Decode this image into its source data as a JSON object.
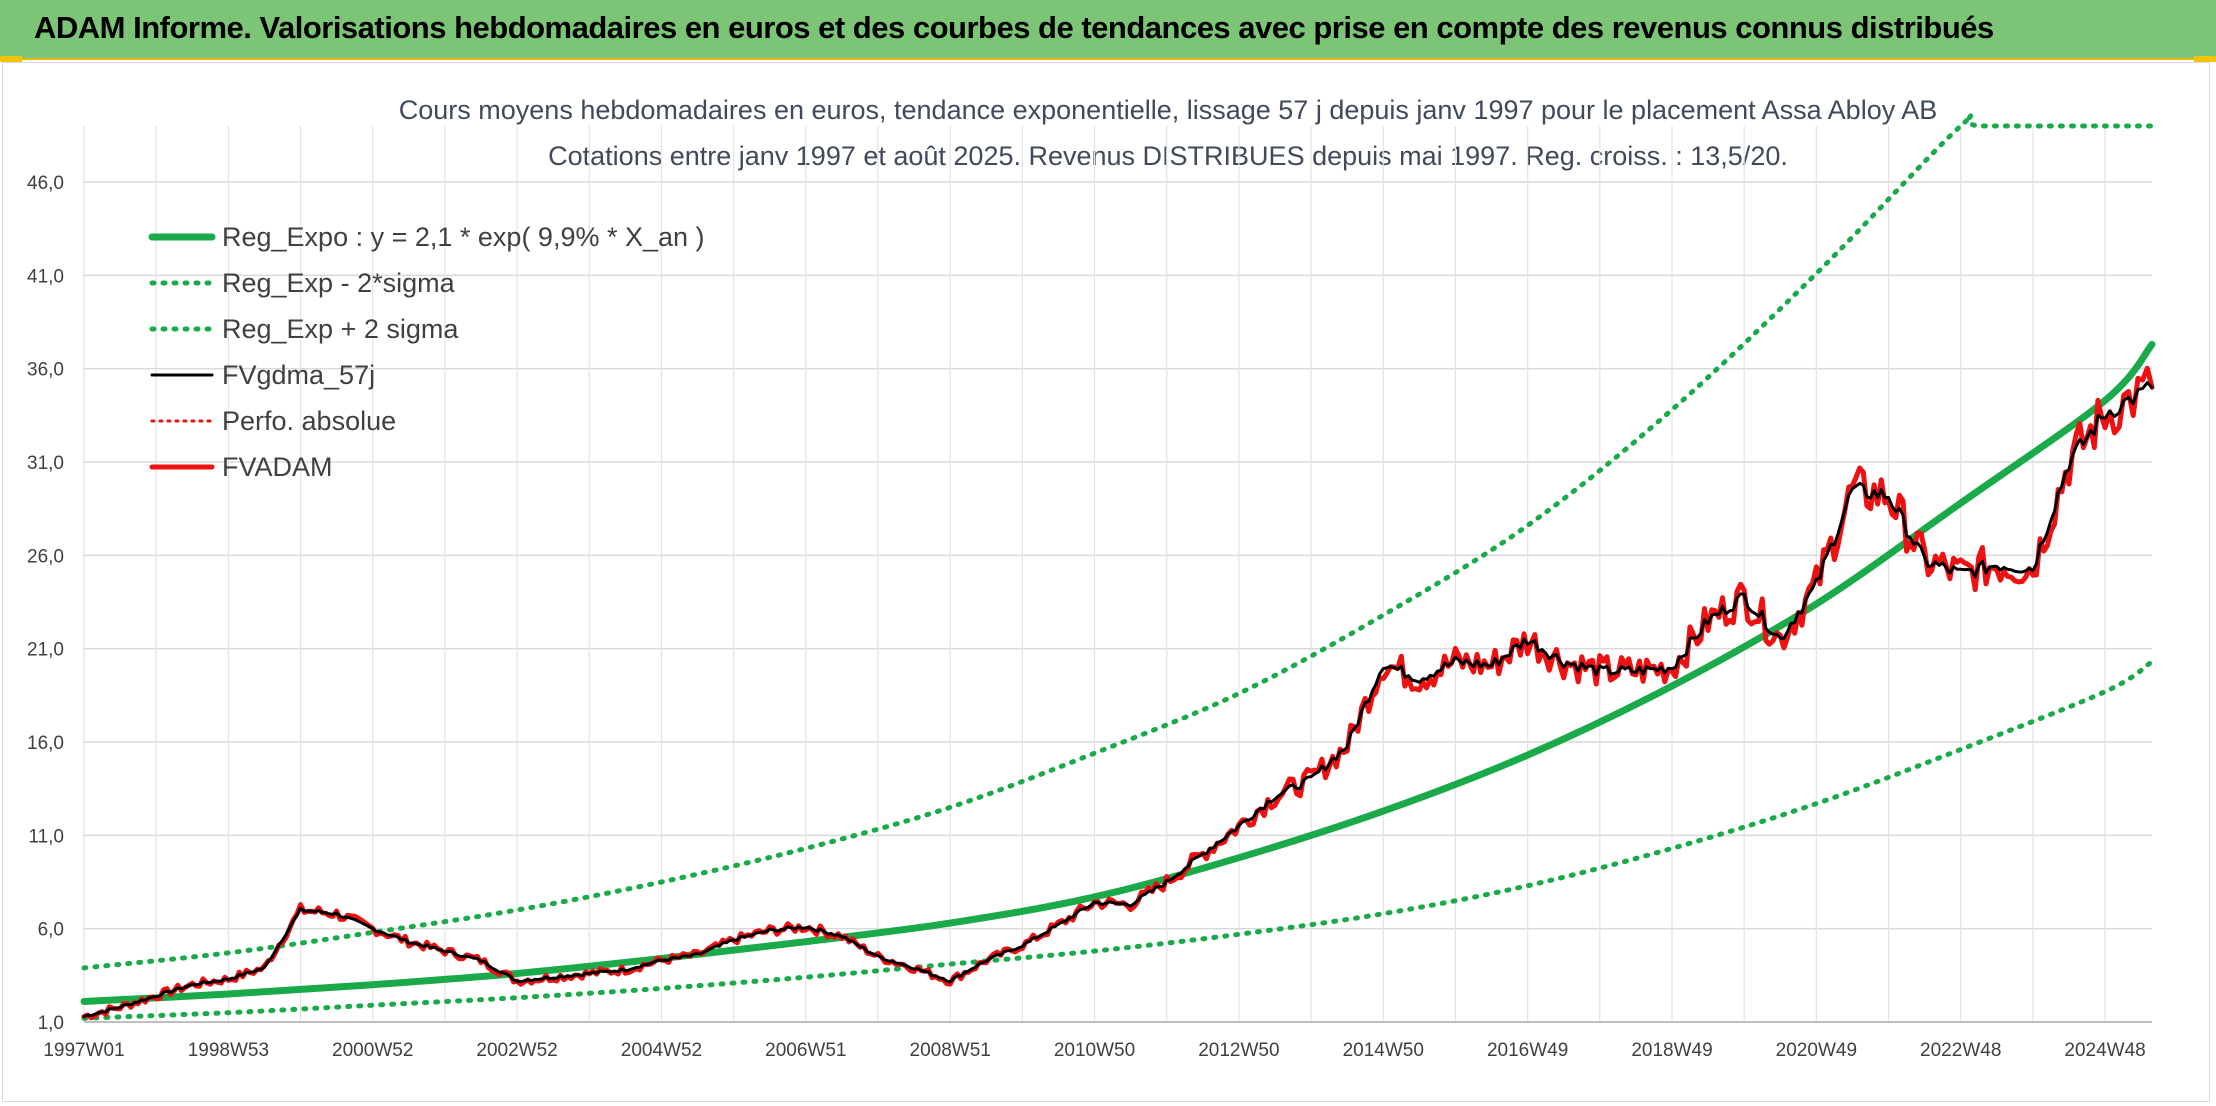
{
  "header": {
    "title": "ADAM Informe. Valorisations hebdomadaires en euros et des courbes de tendances avec prise en compte des revenus connus distribués"
  },
  "colors": {
    "banner": "#7cc576",
    "trend": "#1aaa4a",
    "fv": "#000000",
    "fvadam": "#ee1111",
    "perfo": "#ee1111"
  },
  "chart_data": {
    "type": "line",
    "title": "Cours moyens hebdomadaires en euros, tendance exponentielle, lissage 57 j depuis janv 1997 pour le placement Assa Abloy AB",
    "subtitle": "Cotations entre janv 1997 et août 2025. Revenus DISTRIBUES depuis mai 1997. Reg. croiss. : 13,5/20.",
    "xlim": [
      1997.0,
      2025.65
    ],
    "ylim": [
      1.0,
      49.0
    ],
    "y_ticks": [
      1.0,
      6.0,
      11.0,
      16.0,
      21.0,
      26.0,
      31.0,
      36.0,
      41.0,
      46.0
    ],
    "y_tick_labels": [
      "1,0",
      "6,0",
      "11,0",
      "16,0",
      "21,0",
      "26,0",
      "31,0",
      "36,0",
      "41,0",
      "46,0"
    ],
    "x_tick_labels": [
      "1997W01",
      "1998W53",
      "2000W52",
      "2002W52",
      "2004W52",
      "2006W51",
      "2008W51",
      "2010W50",
      "2012W50",
      "2014W50",
      "2016W49",
      "2018W49",
      "2020W49",
      "2022W48",
      "2024W48"
    ],
    "x_tick_positions": [
      1997.0,
      1999.0,
      2001.0,
      2003.0,
      2005.0,
      2007.0,
      2009.0,
      2011.0,
      2013.0,
      2015.0,
      2017.0,
      2019.0,
      2021.0,
      2023.0,
      2025.0
    ],
    "grid": true,
    "legend_position": "top-left",
    "legend": [
      "Reg_Expo : y = 2,1 * exp( 9,9% *  X_an )",
      "Reg_Exp - 2*sigma",
      "Reg_Exp + 2 sigma",
      "FVgdma_57j",
      "Perfo. absolue",
      "FVADAM"
    ],
    "series": [
      {
        "name": "Reg_Expo : y = 2,1 * exp( 9,9% *  X_an )",
        "x": [
          1997.0,
          1999.0,
          2001.0,
          2003.0,
          2005.0,
          2007.0,
          2009.0,
          2011.0,
          2013.0,
          2015.0,
          2017.0,
          2019.0,
          2021.0,
          2023.0,
          2025.0,
          2025.65
        ],
        "values": [
          2.1,
          2.5,
          3.0,
          3.6,
          4.4,
          5.3,
          6.3,
          7.7,
          9.8,
          12.3,
          15.3,
          19.0,
          23.4,
          28.8,
          34.3,
          37.3
        ]
      },
      {
        "name": "Reg_Exp - 2*sigma",
        "x": [
          1997.0,
          1999.0,
          2001.0,
          2003.0,
          2005.0,
          2007.0,
          2009.0,
          2011.0,
          2013.0,
          2015.0,
          2017.0,
          2019.0,
          2021.0,
          2023.0,
          2025.0,
          2025.65
        ],
        "values": [
          1.2,
          1.5,
          1.9,
          2.3,
          2.8,
          3.4,
          4.1,
          4.8,
          5.7,
          6.8,
          8.3,
          10.3,
          12.7,
          15.6,
          18.7,
          20.3
        ]
      },
      {
        "name": "Reg_Exp + 2 sigma",
        "x": [
          1997.0,
          1999.0,
          2001.0,
          2003.0,
          2005.0,
          2007.0,
          2009.0,
          2011.0,
          2013.0,
          2015.0,
          2017.0,
          2019.0,
          2021.0,
          2023.0,
          2023.3,
          2025.65
        ],
        "values": [
          3.9,
          4.7,
          5.8,
          7.0,
          8.5,
          10.3,
          12.5,
          15.4,
          18.6,
          22.8,
          27.6,
          33.8,
          41.1,
          49.0,
          49.0,
          49.0
        ]
      },
      {
        "name": "FVgdma_57j",
        "x": [
          1997.0,
          1997.5,
          1998.0,
          1998.5,
          1999.0,
          1999.5,
          2000.0,
          2000.5,
          2001.0,
          2001.5,
          2002.0,
          2002.5,
          2003.0,
          2003.5,
          2004.0,
          2004.5,
          2005.0,
          2005.5,
          2006.0,
          2006.5,
          2007.0,
          2007.5,
          2008.0,
          2008.5,
          2009.0,
          2009.5,
          2010.0,
          2010.5,
          2011.0,
          2011.5,
          2012.0,
          2012.5,
          2013.0,
          2013.5,
          2014.0,
          2014.5,
          2015.0,
          2015.5,
          2016.0,
          2016.5,
          2017.0,
          2017.5,
          2018.0,
          2018.5,
          2019.0,
          2019.5,
          2020.0,
          2020.5,
          2021.0,
          2021.5,
          2022.0,
          2022.5,
          2023.0,
          2023.5,
          2024.0,
          2024.5,
          2025.0,
          2025.65
        ],
        "values": [
          1.3,
          1.8,
          2.4,
          3.0,
          3.3,
          3.9,
          7.0,
          6.8,
          6.0,
          5.3,
          4.8,
          4.3,
          3.2,
          3.4,
          3.6,
          3.8,
          4.3,
          4.6,
          5.4,
          5.9,
          6.1,
          5.6,
          4.5,
          3.9,
          3.2,
          4.3,
          5.1,
          6.2,
          7.4,
          7.3,
          8.5,
          10.0,
          11.5,
          13.1,
          14.0,
          15.8,
          20.2,
          19.4,
          20.3,
          20.1,
          21.5,
          20.3,
          19.8,
          19.8,
          20.0,
          22.5,
          23.8,
          21.5,
          24.4,
          29.5,
          29.2,
          25.7,
          25.0,
          25.5,
          25.3,
          31.0,
          33.6,
          35.0
        ]
      },
      {
        "name": "Perfo. absolue",
        "x": [],
        "values": []
      },
      {
        "name": "FVADAM",
        "x": [
          1997.0,
          1997.5,
          1998.0,
          1998.5,
          1999.0,
          1999.5,
          2000.0,
          2000.5,
          2001.0,
          2001.5,
          2002.0,
          2002.5,
          2003.0,
          2003.5,
          2004.0,
          2004.5,
          2005.0,
          2005.5,
          2006.0,
          2006.5,
          2007.0,
          2007.5,
          2008.0,
          2008.5,
          2009.0,
          2009.5,
          2010.0,
          2010.5,
          2011.0,
          2011.5,
          2012.0,
          2012.5,
          2013.0,
          2013.5,
          2014.0,
          2014.5,
          2015.0,
          2015.5,
          2016.0,
          2016.5,
          2017.0,
          2017.5,
          2018.0,
          2018.5,
          2019.0,
          2019.5,
          2020.0,
          2020.5,
          2021.0,
          2021.5,
          2022.0,
          2022.5,
          2023.0,
          2023.5,
          2024.0,
          2024.5,
          2025.0,
          2025.65
        ],
        "values": [
          1.3,
          1.8,
          2.4,
          3.0,
          3.3,
          3.9,
          7.0,
          6.8,
          6.0,
          5.3,
          4.8,
          4.3,
          3.2,
          3.4,
          3.6,
          3.8,
          4.3,
          4.6,
          5.4,
          5.9,
          6.1,
          5.6,
          4.5,
          3.9,
          3.2,
          4.3,
          5.1,
          6.2,
          7.4,
          7.3,
          8.5,
          10.0,
          11.5,
          13.1,
          14.0,
          15.8,
          20.2,
          19.4,
          20.3,
          20.1,
          21.5,
          20.3,
          19.8,
          19.8,
          20.0,
          22.5,
          23.8,
          21.5,
          24.4,
          29.5,
          29.2,
          25.7,
          25.0,
          25.5,
          25.3,
          31.0,
          33.6,
          35.0
        ]
      }
    ]
  }
}
